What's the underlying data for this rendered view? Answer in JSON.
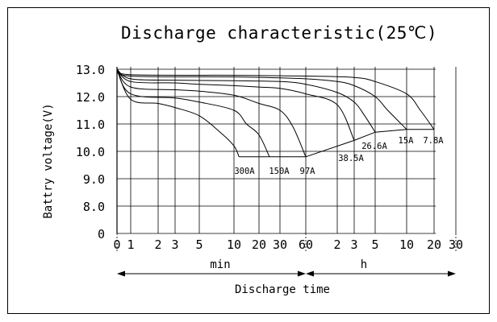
{
  "chart_data": {
    "type": "line",
    "title": "Discharge characteristic(25℃)",
    "ylabel": "Battry voltage(V)",
    "xlabel": "Discharge time",
    "ylim": [
      0,
      13.0
    ],
    "y_ticks": [
      "13.0",
      "12.0",
      "11.0",
      "10.0",
      "9.0",
      "8.0",
      "0"
    ],
    "x_ticks_min": [
      "0",
      "1",
      "2",
      "3",
      "5",
      "10",
      "20",
      "30",
      "60"
    ],
    "x_ticks_h": [
      "2",
      "3",
      "5",
      "10",
      "20",
      "30"
    ],
    "x_unit_min": "min",
    "x_unit_h": "h",
    "grid": true,
    "series": [
      {
        "name": "300A",
        "x_min": [
          0,
          1,
          2,
          3,
          5,
          8,
          10,
          12
        ],
        "y": [
          13.0,
          11.9,
          11.75,
          11.6,
          11.3,
          10.7,
          10.2,
          9.8
        ]
      },
      {
        "name": "150A",
        "x_min": [
          0,
          1,
          3,
          5,
          10,
          15,
          20,
          25
        ],
        "y": [
          13.0,
          12.1,
          11.95,
          11.8,
          11.5,
          11.0,
          10.6,
          9.8
        ]
      },
      {
        "name": "97A",
        "x_min": [
          0,
          1,
          3,
          5,
          10,
          20,
          30,
          45,
          60
        ],
        "y": [
          13.0,
          12.35,
          12.25,
          12.2,
          12.05,
          11.75,
          11.5,
          10.9,
          9.8
        ]
      },
      {
        "name": "38.5A",
        "x_min": [
          0,
          1,
          3,
          5,
          10,
          20,
          30,
          60,
          120,
          180
        ],
        "y": [
          13.0,
          12.55,
          12.5,
          12.45,
          12.4,
          12.35,
          12.3,
          12.1,
          11.7,
          10.4
        ]
      },
      {
        "name": "26.6A",
        "x_min": [
          0,
          1,
          3,
          10,
          30,
          60,
          120,
          180,
          240,
          300
        ],
        "y": [
          13.0,
          12.65,
          12.6,
          12.58,
          12.55,
          12.45,
          12.15,
          11.8,
          11.3,
          10.7
        ]
      },
      {
        "name": "15A",
        "x_min": [
          0,
          1,
          10,
          60,
          120,
          180,
          300,
          420,
          600
        ],
        "y": [
          13.0,
          12.75,
          12.72,
          12.65,
          12.55,
          12.4,
          12.0,
          11.5,
          10.8
        ]
      },
      {
        "name": "7.8A",
        "x_min": [
          0,
          1,
          10,
          60,
          180,
          300,
          600,
          900,
          1200
        ],
        "y": [
          13.0,
          12.8,
          12.78,
          12.75,
          12.7,
          12.55,
          12.1,
          11.5,
          10.8
        ]
      }
    ],
    "final_voltage": {
      "x_min": [
        12,
        25,
        60,
        180,
        300,
        600,
        1200
      ],
      "y": [
        9.8,
        9.8,
        9.8,
        10.4,
        10.7,
        10.8,
        10.8
      ]
    }
  }
}
